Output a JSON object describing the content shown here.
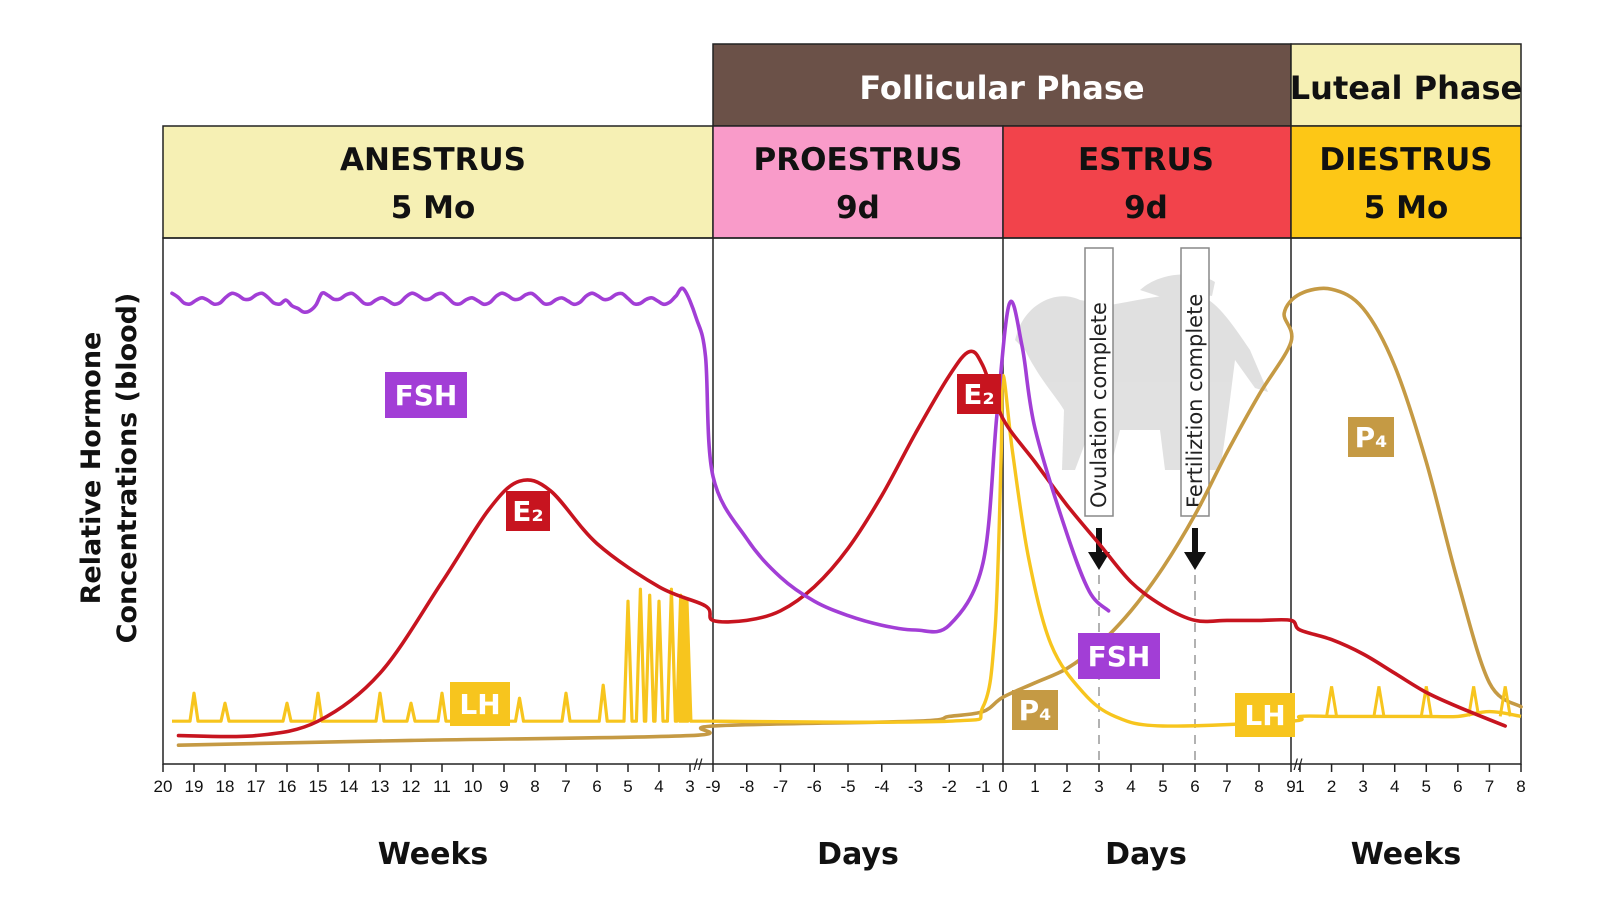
{
  "chart_data": {
    "type": "line",
    "ylabel": [
      "Relative Hormone",
      "Concentrations (blood)"
    ],
    "phases": [
      {
        "key": "follicular",
        "label": "Follicular Phase",
        "color": "#6b5148",
        "text_color": "#ffffff"
      },
      {
        "key": "luteal",
        "label": "Luteal Phase",
        "color": "#f6f0b4",
        "text_color": "#111111"
      }
    ],
    "stages": [
      {
        "key": "anestrus",
        "name": "ANESTRUS",
        "duration": "5 Mo",
        "color": "#f6f0b4"
      },
      {
        "key": "proestrus",
        "name": "PROESTRUS",
        "duration": "9d",
        "color": "#f99bc9"
      },
      {
        "key": "estrus",
        "name": "ESTRUS",
        "duration": "9d",
        "color": "#f2434b"
      },
      {
        "key": "diestrus",
        "name": "DIESTRUS",
        "duration": "5 Mo",
        "color": "#fdc716"
      }
    ],
    "x_axis_segments": [
      {
        "unit": "Weeks",
        "ticks": [
          "20",
          "19",
          "18",
          "17",
          "16",
          "15",
          "14",
          "13",
          "12",
          "11",
          "10",
          "9",
          "8",
          "7",
          "6",
          "5",
          "4",
          "3"
        ]
      },
      {
        "unit": "Days",
        "ticks": [
          "-9",
          "-8",
          "-7",
          "-6",
          "-5",
          "-4",
          "-3",
          "-2",
          "-1"
        ]
      },
      {
        "unit": "Days",
        "ticks": [
          "0",
          "1",
          "2",
          "3",
          "4",
          "5",
          "6",
          "7",
          "8",
          "9"
        ]
      },
      {
        "unit": "Weeks",
        "ticks": [
          "1",
          "2",
          "3",
          "4",
          "5",
          "6",
          "7",
          "8"
        ]
      }
    ],
    "axis_break_marks": [
      "//",
      "//"
    ],
    "y_range": [
      0,
      100
    ],
    "series": [
      {
        "name": "FSH",
        "color": "#a23ed6",
        "labels": [
          "FSH",
          "FSH"
        ],
        "points": [
          [
            20,
            92
          ],
          [
            19,
            94
          ],
          [
            18,
            94
          ],
          [
            17,
            93
          ],
          [
            16,
            90
          ],
          [
            15,
            93
          ],
          [
            14,
            93
          ],
          [
            13,
            94
          ],
          [
            12,
            92
          ],
          [
            11,
            93
          ],
          [
            10,
            93
          ],
          [
            9,
            94
          ],
          [
            8,
            94
          ],
          [
            7,
            95
          ],
          [
            6,
            95
          ],
          [
            5,
            95
          ],
          [
            4,
            95
          ],
          [
            3.2,
            96
          ],
          [
            2.8,
            90
          ],
          [
            2.5,
            82
          ],
          [
            -9,
            57
          ],
          [
            -8,
            44
          ],
          [
            -7,
            36
          ],
          [
            -6,
            31
          ],
          [
            -5,
            28
          ],
          [
            -4,
            26
          ],
          [
            -3,
            25
          ],
          [
            -2,
            26
          ],
          [
            -1,
            39
          ],
          [
            -0.3,
            70
          ],
          [
            0.2,
            93
          ],
          [
            0.6,
            84
          ],
          [
            1,
            67
          ],
          [
            2,
            45
          ],
          [
            2.7,
            33
          ],
          [
            3.3,
            29
          ]
        ]
      },
      {
        "name": "E2",
        "color": "#c7141f",
        "labels": [
          "E₂",
          "E₂"
        ],
        "points": [
          [
            19.5,
            3
          ],
          [
            17,
            3
          ],
          [
            15,
            6
          ],
          [
            13,
            16
          ],
          [
            11,
            35
          ],
          [
            9.5,
            50
          ],
          [
            8.5,
            56
          ],
          [
            7.5,
            54
          ],
          [
            6,
            43
          ],
          [
            4,
            34
          ],
          [
            2.5,
            30
          ],
          [
            -9,
            27
          ],
          [
            -8,
            27
          ],
          [
            -7,
            29
          ],
          [
            -6,
            34
          ],
          [
            -5,
            42
          ],
          [
            -4,
            53
          ],
          [
            -3,
            66
          ],
          [
            -2,
            78
          ],
          [
            -1.4,
            83
          ],
          [
            -1,
            80
          ],
          [
            0,
            69
          ],
          [
            1,
            60
          ],
          [
            2,
            51
          ],
          [
            3,
            43
          ],
          [
            4,
            35
          ],
          [
            5,
            30
          ],
          [
            6,
            27
          ],
          [
            7,
            27
          ],
          [
            8,
            27
          ],
          [
            9,
            27
          ],
          [
            1,
            25
          ],
          [
            2,
            23
          ],
          [
            3,
            20
          ],
          [
            4,
            16
          ],
          [
            5,
            12
          ],
          [
            6,
            9
          ],
          [
            7.5,
            5
          ]
        ]
      },
      {
        "name": "LH",
        "color": "#f7c51e",
        "labels": [
          "LH",
          "LH"
        ],
        "spikes_weeks": [
          19,
          18,
          16,
          15,
          13,
          12,
          11,
          8.5,
          7,
          5.8,
          5,
          4.6,
          4.3,
          4,
          3.6,
          3.3,
          3.2,
          3.1
        ],
        "points": [
          [
            19.5,
            6
          ],
          [
            3,
            6
          ],
          [
            -9,
            6
          ],
          [
            -2,
            6
          ],
          [
            -1,
            9
          ],
          [
            -0.4,
            25
          ],
          [
            -0.1,
            60
          ],
          [
            0,
            78
          ],
          [
            0.3,
            62
          ],
          [
            0.8,
            40
          ],
          [
            1.5,
            22
          ],
          [
            2.5,
            12
          ],
          [
            3.5,
            7
          ],
          [
            5,
            5
          ],
          [
            9,
            6
          ],
          [
            1,
            7
          ],
          [
            2,
            7
          ],
          [
            3,
            7
          ],
          [
            4,
            7
          ],
          [
            5,
            7
          ],
          [
            6,
            7
          ],
          [
            7,
            8
          ],
          [
            8,
            7
          ]
        ],
        "spikes_late": [
          2,
          3.5,
          5,
          6.5,
          7.5
        ]
      },
      {
        "name": "P4",
        "color": "#c59a44",
        "labels": [
          "P₄",
          "P₄"
        ],
        "points": [
          [
            19.5,
            1
          ],
          [
            12,
            2
          ],
          [
            3,
            3
          ],
          [
            -9,
            5
          ],
          [
            -3,
            6
          ],
          [
            -2,
            7
          ],
          [
            -1,
            8
          ],
          [
            0,
            11
          ],
          [
            1,
            14
          ],
          [
            2,
            17
          ],
          [
            3,
            22
          ],
          [
            4,
            29
          ],
          [
            5,
            38
          ],
          [
            6,
            49
          ],
          [
            7,
            62
          ],
          [
            8,
            74
          ],
          [
            9,
            85
          ],
          [
            0.5,
            91
          ],
          [
            1,
            95
          ],
          [
            2,
            96
          ],
          [
            3,
            92
          ],
          [
            4,
            80
          ],
          [
            5,
            60
          ],
          [
            6,
            35
          ],
          [
            7,
            14
          ],
          [
            8,
            9
          ]
        ]
      }
    ],
    "annotations": [
      {
        "text": "Ovulation complete",
        "day": 3
      },
      {
        "text": "Fertiliztion complete",
        "day": 6
      }
    ]
  }
}
